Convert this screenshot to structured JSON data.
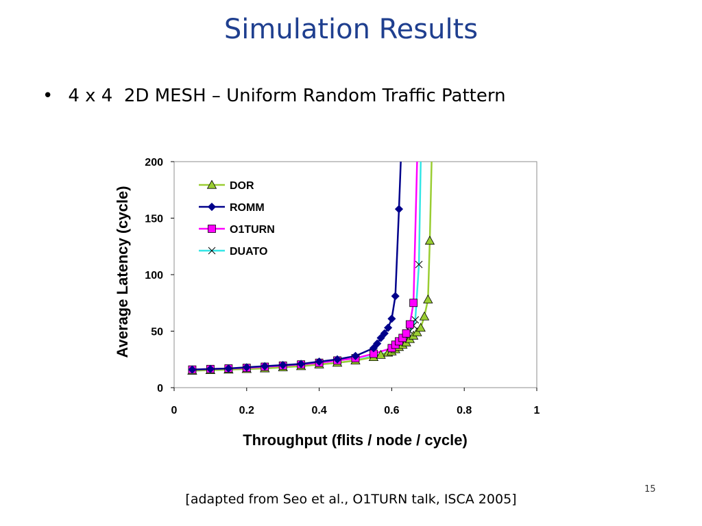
{
  "slide": {
    "title": "Simulation Results",
    "bullet_symbol": "•",
    "bullet_text": "4 x 4  2D MESH – Uniform Random Traffic Pattern",
    "caption": "[adapted from Seo et al., O1TURN talk, ISCA 2005]",
    "page_number": "15"
  },
  "chart_data": {
    "type": "line",
    "xlabel": "Throughput (flits / node / cycle)",
    "ylabel": "Average Latency (cycle)",
    "xlim": [
      0,
      1
    ],
    "ylim": [
      0,
      200
    ],
    "x_ticks": [
      "0",
      "0.2",
      "0.4",
      "0.6",
      "0.8",
      "1"
    ],
    "y_ticks": [
      "0",
      "50",
      "100",
      "150",
      "200"
    ],
    "grid": false,
    "legend_position": "top-left",
    "series": [
      {
        "name": "DOR",
        "color": "#9acd32",
        "marker": "triangle",
        "x": [
          0.05,
          0.1,
          0.15,
          0.2,
          0.25,
          0.3,
          0.35,
          0.4,
          0.45,
          0.5,
          0.55,
          0.57,
          0.59,
          0.6,
          0.61,
          0.62,
          0.63,
          0.64,
          0.65,
          0.66,
          0.67,
          0.68,
          0.69,
          0.7,
          0.705,
          0.71
        ],
        "y": [
          15,
          15.5,
          16,
          16.5,
          17,
          18,
          19,
          20.5,
          22,
          24,
          27,
          29,
          31,
          32,
          34,
          36,
          38,
          40,
          43,
          46,
          49,
          53,
          63,
          78,
          130,
          200
        ]
      },
      {
        "name": "ROMM",
        "color": "#00008b",
        "marker": "diamond",
        "x": [
          0.05,
          0.1,
          0.15,
          0.2,
          0.25,
          0.3,
          0.35,
          0.4,
          0.45,
          0.5,
          0.55,
          0.56,
          0.57,
          0.58,
          0.59,
          0.6,
          0.61,
          0.62,
          0.625
        ],
        "y": [
          16,
          16.5,
          17,
          18,
          19,
          20,
          21,
          23,
          25,
          28,
          35,
          39,
          44,
          48,
          53,
          61,
          81,
          158,
          200
        ]
      },
      {
        "name": "O1TURN",
        "color": "#ff00ff",
        "marker": "square",
        "x": [
          0.05,
          0.1,
          0.15,
          0.2,
          0.25,
          0.3,
          0.35,
          0.4,
          0.45,
          0.5,
          0.55,
          0.6,
          0.61,
          0.62,
          0.63,
          0.64,
          0.65,
          0.66,
          0.67
        ],
        "y": [
          16,
          16.5,
          17,
          17.5,
          18.5,
          19.5,
          20.5,
          22,
          24,
          26,
          30,
          35,
          38,
          41,
          44,
          48,
          56,
          75,
          200
        ]
      },
      {
        "name": "DUATO",
        "color": "#33e6e6",
        "marker": "x",
        "x": [
          0.05,
          0.1,
          0.15,
          0.2,
          0.25,
          0.3,
          0.35,
          0.4,
          0.45,
          0.5,
          0.55,
          0.6,
          0.61,
          0.62,
          0.63,
          0.64,
          0.65,
          0.66,
          0.665,
          0.675,
          0.68
        ],
        "y": [
          15,
          15.5,
          16,
          16.5,
          17,
          18,
          19,
          20.5,
          22,
          24,
          28,
          32,
          35,
          38,
          41,
          45,
          50,
          55,
          60,
          109,
          200
        ]
      }
    ]
  }
}
